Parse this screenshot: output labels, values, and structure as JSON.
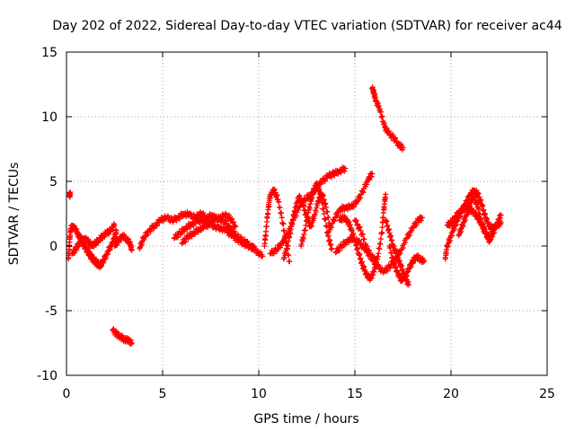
{
  "chart_data": {
    "type": "scatter",
    "title": "Day 202 of 2022, Sidereal Day-to-day VTEC variation (SDTVAR) for receiver ac44",
    "xlabel": "GPS time / hours",
    "ylabel": "SDTVAR / TECUs",
    "xlim": [
      0,
      25
    ],
    "ylim": [
      -10,
      15
    ],
    "xticks": [
      0,
      5,
      10,
      15,
      20,
      25
    ],
    "yticks": [
      -10,
      -5,
      0,
      5,
      10,
      15
    ],
    "grid": true,
    "marker": "+",
    "series": [
      {
        "name": "SDTVAR",
        "color": "#ff0000",
        "segments": [
          [
            [
              0.15,
              3.9
            ],
            [
              0.2,
              4.0
            ]
          ],
          [
            [
              0.1,
              -1.0
            ],
            [
              0.15,
              0.0
            ],
            [
              0.2,
              1.2
            ],
            [
              0.3,
              1.6
            ],
            [
              0.5,
              1.2
            ],
            [
              0.7,
              0.6
            ],
            [
              0.9,
              0.2
            ],
            [
              1.1,
              -0.4
            ],
            [
              1.3,
              -0.9
            ],
            [
              1.5,
              -1.3
            ],
            [
              1.7,
              -1.5
            ],
            [
              1.9,
              -1.2
            ],
            [
              2.1,
              -0.6
            ],
            [
              2.3,
              0.0
            ],
            [
              2.5,
              0.6
            ],
            [
              2.6,
              1.2
            ]
          ],
          [
            [
              0.3,
              -0.6
            ],
            [
              0.5,
              -0.2
            ],
            [
              0.7,
              0.3
            ],
            [
              0.9,
              0.6
            ],
            [
              1.1,
              0.4
            ],
            [
              1.3,
              0.0
            ],
            [
              1.5,
              0.2
            ],
            [
              1.7,
              0.5
            ],
            [
              1.9,
              0.8
            ],
            [
              2.1,
              1.0
            ],
            [
              2.3,
              1.2
            ],
            [
              2.5,
              1.6
            ]
          ],
          [
            [
              0.6,
              0.9
            ],
            [
              0.8,
              0.4
            ],
            [
              1.0,
              -0.2
            ],
            [
              1.2,
              -0.6
            ],
            [
              1.4,
              -1.0
            ],
            [
              1.6,
              -1.3
            ],
            [
              1.8,
              -1.6
            ]
          ],
          [
            [
              2.4,
              -6.5
            ],
            [
              2.6,
              -6.8
            ],
            [
              2.8,
              -7.0
            ],
            [
              3.0,
              -7.2
            ],
            [
              3.2,
              -7.3
            ],
            [
              3.4,
              -7.5
            ]
          ],
          [
            [
              2.5,
              0.0
            ],
            [
              2.7,
              0.4
            ],
            [
              2.9,
              0.8
            ],
            [
              3.1,
              0.6
            ],
            [
              3.3,
              0.2
            ],
            [
              3.4,
              -0.3
            ]
          ],
          [
            [
              3.8,
              -0.2
            ],
            [
              4.0,
              0.6
            ],
            [
              4.3,
              1.2
            ],
            [
              4.6,
              1.6
            ],
            [
              4.9,
              2.0
            ],
            [
              5.2,
              2.2
            ],
            [
              5.5,
              2.0
            ],
            [
              5.8,
              2.2
            ],
            [
              6.1,
              2.5
            ],
            [
              6.4,
              2.4
            ],
            [
              6.7,
              2.2
            ],
            [
              7.0,
              2.5
            ],
            [
              7.3,
              2.2
            ],
            [
              7.6,
              2.4
            ],
            [
              7.9,
              2.0
            ],
            [
              8.2,
              2.4
            ],
            [
              8.5,
              2.2
            ],
            [
              8.8,
              1.5
            ]
          ],
          [
            [
              5.6,
              0.6
            ],
            [
              5.9,
              1.0
            ],
            [
              6.2,
              1.4
            ],
            [
              6.5,
              1.7
            ],
            [
              6.8,
              1.9
            ],
            [
              7.1,
              2.0
            ],
            [
              7.4,
              1.8
            ],
            [
              7.7,
              1.5
            ],
            [
              8.0,
              1.4
            ],
            [
              8.3,
              1.2
            ],
            [
              8.6,
              0.8
            ],
            [
              8.9,
              0.5
            ],
            [
              9.2,
              0.2
            ],
            [
              9.5,
              0.0
            ],
            [
              9.8,
              -0.2
            ]
          ],
          [
            [
              6.0,
              0.2
            ],
            [
              6.3,
              0.7
            ],
            [
              6.6,
              1.0
            ],
            [
              6.9,
              1.3
            ],
            [
              7.2,
              1.5
            ],
            [
              7.5,
              1.8
            ],
            [
              7.8,
              2.2
            ],
            [
              8.1,
              2.0
            ],
            [
              8.4,
              1.6
            ],
            [
              8.7,
              1.0
            ],
            [
              9.0,
              0.6
            ],
            [
              9.3,
              0.3
            ],
            [
              9.6,
              0.0
            ],
            [
              9.9,
              -0.4
            ],
            [
              10.2,
              -0.8
            ]
          ],
          [
            [
              10.3,
              0.0
            ],
            [
              10.4,
              1.5
            ],
            [
              10.5,
              3.0
            ],
            [
              10.6,
              4.0
            ],
            [
              10.8,
              4.3
            ],
            [
              11.0,
              3.6
            ],
            [
              11.2,
              2.2
            ],
            [
              11.4,
              0.4
            ],
            [
              11.6,
              -1.2
            ]
          ],
          [
            [
              10.6,
              -0.6
            ],
            [
              10.9,
              -0.3
            ],
            [
              11.2,
              0.2
            ],
            [
              11.5,
              1.0
            ],
            [
              11.8,
              2.0
            ],
            [
              12.1,
              3.0
            ],
            [
              12.4,
              3.6
            ],
            [
              12.7,
              4.0
            ],
            [
              13.0,
              4.5
            ],
            [
              13.3,
              5.0
            ],
            [
              13.6,
              5.4
            ],
            [
              13.9,
              5.6
            ],
            [
              14.2,
              5.8
            ],
            [
              14.5,
              6.0
            ]
          ],
          [
            [
              11.3,
              -1.0
            ],
            [
              11.5,
              0.0
            ],
            [
              11.7,
              1.5
            ],
            [
              11.9,
              3.0
            ],
            [
              12.1,
              3.8
            ],
            [
              12.3,
              3.2
            ],
            [
              12.5,
              2.2
            ],
            [
              12.7,
              1.5
            ],
            [
              12.9,
              2.4
            ],
            [
              13.1,
              3.5
            ],
            [
              13.3,
              4.0
            ],
            [
              13.5,
              3.0
            ],
            [
              13.7,
              1.6
            ]
          ],
          [
            [
              12.2,
              0.0
            ],
            [
              12.4,
              1.2
            ],
            [
              12.6,
              2.8
            ],
            [
              12.8,
              4.0
            ],
            [
              13.0,
              4.8
            ],
            [
              13.2,
              4.0
            ],
            [
              13.4,
              2.5
            ],
            [
              13.6,
              0.8
            ],
            [
              13.8,
              -0.2
            ]
          ],
          [
            [
              13.6,
              1.0
            ],
            [
              13.9,
              2.0
            ],
            [
              14.2,
              2.8
            ],
            [
              14.5,
              3.0
            ],
            [
              14.8,
              3.0
            ],
            [
              15.1,
              3.4
            ],
            [
              15.4,
              4.2
            ],
            [
              15.7,
              5.2
            ],
            [
              15.9,
              5.6
            ]
          ],
          [
            [
              14.0,
              -0.5
            ],
            [
              14.3,
              0.0
            ],
            [
              14.6,
              0.4
            ],
            [
              14.9,
              0.6
            ],
            [
              15.2,
              0.3
            ],
            [
              15.5,
              -0.2
            ],
            [
              15.8,
              -0.8
            ],
            [
              16.1,
              -1.0
            ]
          ],
          [
            [
              14.2,
              2.0
            ],
            [
              14.4,
              2.2
            ],
            [
              14.6,
              2.0
            ],
            [
              14.8,
              1.4
            ],
            [
              15.0,
              0.4
            ],
            [
              15.2,
              -0.6
            ],
            [
              15.4,
              -1.5
            ],
            [
              15.6,
              -2.2
            ],
            [
              15.8,
              -2.5
            ],
            [
              16.0,
              -2.0
            ],
            [
              16.2,
              -0.8
            ],
            [
              16.4,
              1.0
            ],
            [
              16.5,
              2.8
            ],
            [
              16.6,
              4.0
            ]
          ],
          [
            [
              15.0,
              2.0
            ],
            [
              15.3,
              1.2
            ],
            [
              15.6,
              0.0
            ],
            [
              15.9,
              -1.0
            ],
            [
              16.2,
              -1.6
            ],
            [
              16.5,
              -2.0
            ],
            [
              16.8,
              -1.6
            ],
            [
              17.1,
              -1.0
            ],
            [
              17.4,
              -0.3
            ],
            [
              17.7,
              0.6
            ],
            [
              18.0,
              1.4
            ],
            [
              18.3,
              2.0
            ],
            [
              18.5,
              2.2
            ]
          ],
          [
            [
              16.8,
              0.0
            ],
            [
              17.0,
              -1.2
            ],
            [
              17.2,
              -2.0
            ],
            [
              17.4,
              -2.6
            ],
            [
              17.6,
              -2.4
            ],
            [
              17.8,
              -1.8
            ],
            [
              18.0,
              -1.2
            ],
            [
              18.2,
              -0.8
            ],
            [
              18.4,
              -1.0
            ],
            [
              18.6,
              -1.2
            ]
          ],
          [
            [
              16.6,
              2.0
            ],
            [
              16.8,
              1.0
            ],
            [
              17.0,
              0.0
            ],
            [
              17.2,
              -0.8
            ],
            [
              17.4,
              -1.6
            ],
            [
              17.6,
              -2.4
            ],
            [
              17.8,
              -3.0
            ]
          ],
          [
            [
              15.9,
              12.2
            ],
            [
              16.0,
              11.8
            ],
            [
              16.1,
              11.2
            ],
            [
              16.3,
              10.6
            ],
            [
              16.5,
              9.4
            ],
            [
              16.7,
              8.8
            ],
            [
              17.0,
              8.4
            ],
            [
              17.3,
              7.8
            ],
            [
              17.5,
              7.6
            ]
          ],
          [
            [
              19.7,
              -1.0
            ],
            [
              19.8,
              0.0
            ],
            [
              20.0,
              0.8
            ],
            [
              20.2,
              1.6
            ],
            [
              20.4,
              2.2
            ],
            [
              20.6,
              2.8
            ],
            [
              20.8,
              3.4
            ],
            [
              21.0,
              4.0
            ],
            [
              21.2,
              4.3
            ],
            [
              21.4,
              4.0
            ],
            [
              21.6,
              3.2
            ],
            [
              21.8,
              2.2
            ],
            [
              22.0,
              1.5
            ],
            [
              22.2,
              1.4
            ],
            [
              22.4,
              1.6
            ],
            [
              22.6,
              1.8
            ]
          ],
          [
            [
              19.8,
              1.6
            ],
            [
              20.0,
              1.8
            ],
            [
              20.2,
              2.2
            ],
            [
              20.4,
              2.6
            ],
            [
              20.6,
              2.8
            ],
            [
              20.8,
              3.0
            ],
            [
              21.0,
              2.8
            ],
            [
              21.2,
              2.6
            ],
            [
              21.4,
              2.2
            ],
            [
              21.6,
              1.6
            ],
            [
              21.8,
              1.0
            ],
            [
              22.0,
              0.6
            ],
            [
              22.2,
              1.0
            ],
            [
              22.4,
              1.8
            ],
            [
              22.6,
              2.4
            ]
          ],
          [
            [
              20.4,
              0.8
            ],
            [
              20.6,
              1.6
            ],
            [
              20.8,
              2.4
            ],
            [
              21.0,
              3.4
            ],
            [
              21.2,
              3.8
            ],
            [
              21.4,
              3.0
            ],
            [
              21.6,
              1.8
            ],
            [
              21.8,
              1.0
            ],
            [
              22.0,
              0.4
            ],
            [
              22.2,
              1.2
            ]
          ]
        ]
      }
    ]
  }
}
